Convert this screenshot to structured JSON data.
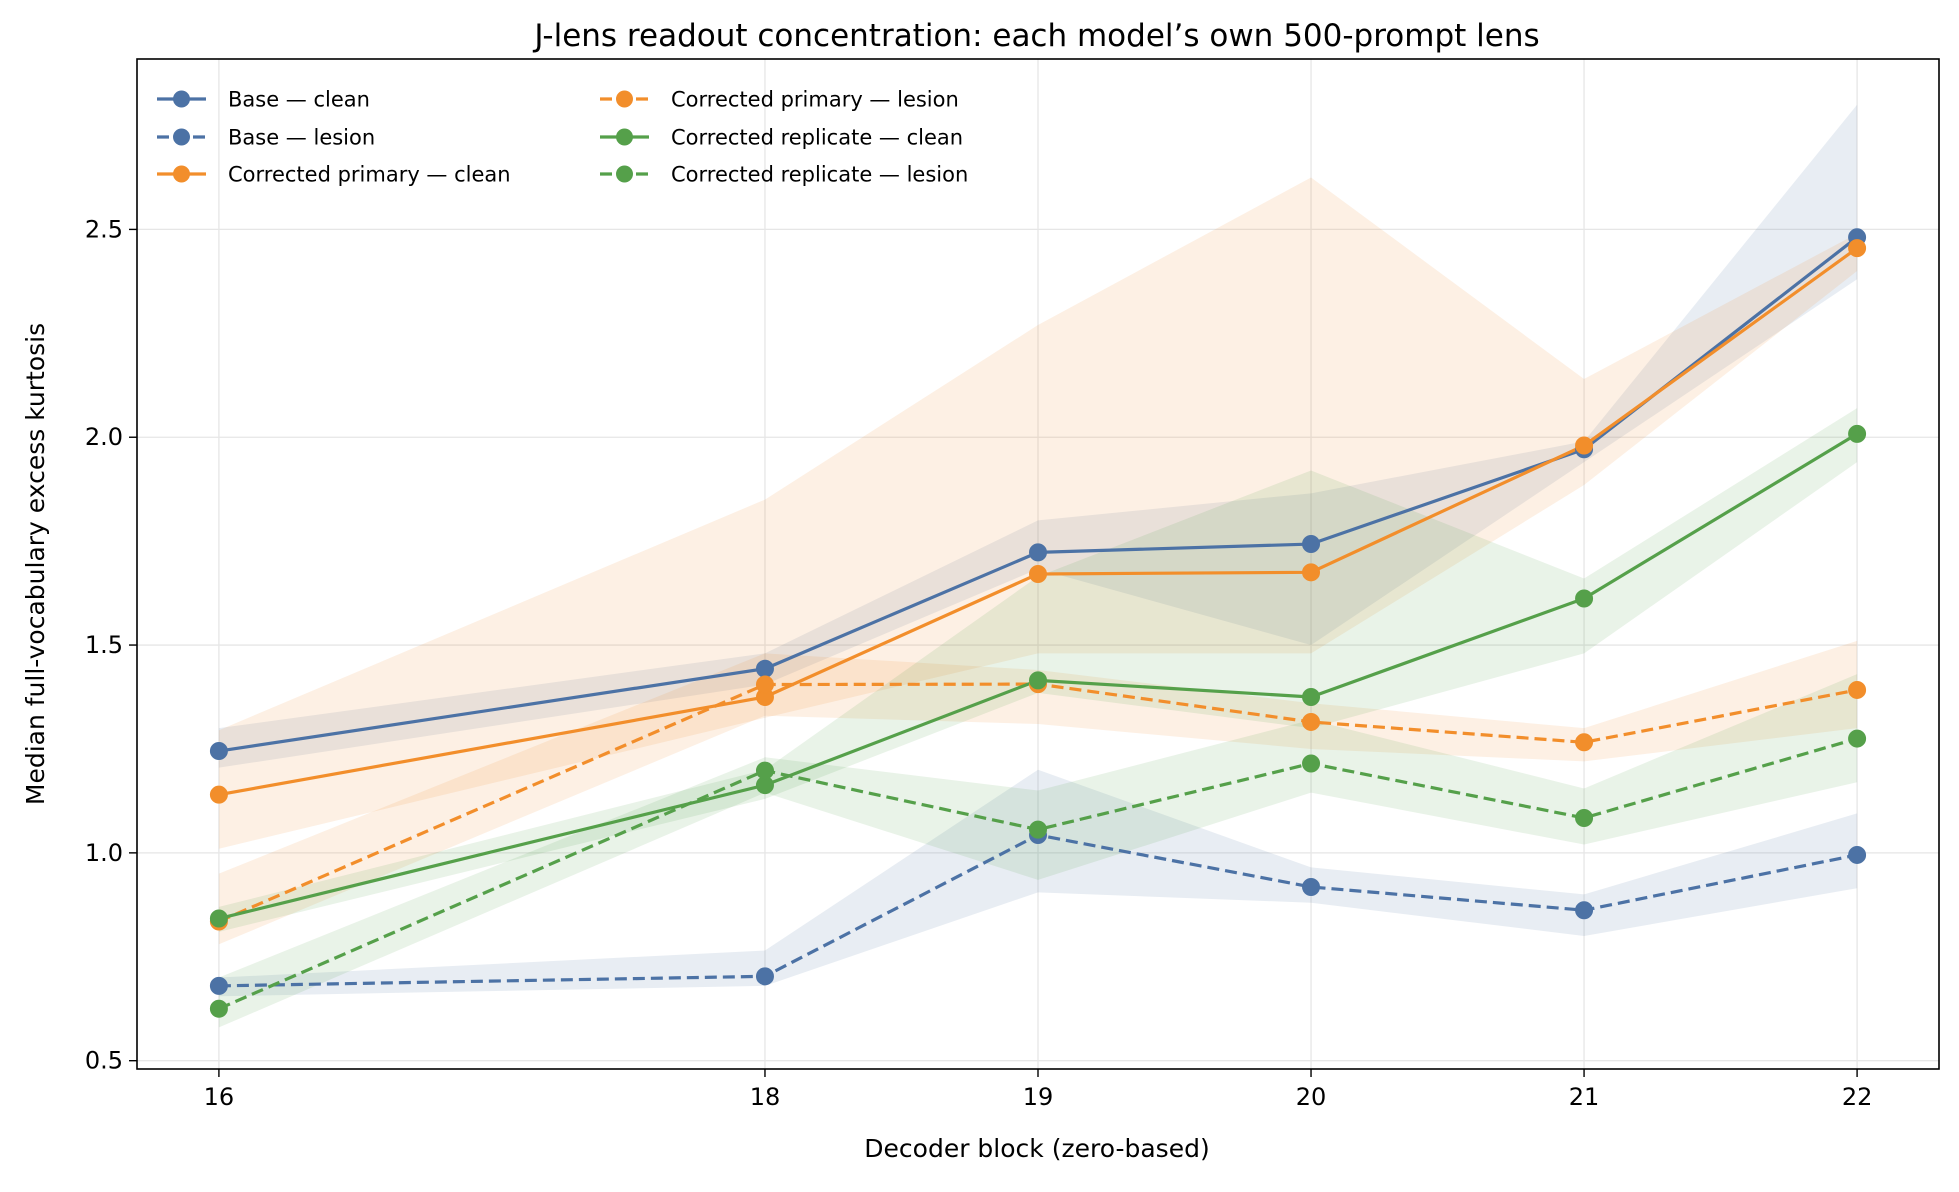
{
  "chart_data": {
    "type": "line",
    "title": "J-lens readout concentration: each model’s own 500-prompt lens",
    "xlabel": "Decoder block (zero-based)",
    "ylabel": "Median full-vocabulary excess kurtosis",
    "x": [
      16,
      18,
      19,
      20,
      21,
      22
    ],
    "xlim": [
      15.7,
      22.3
    ],
    "ylim": [
      0.48,
      2.91
    ],
    "xticks": [
      "16",
      "18",
      "19",
      "20",
      "21",
      "22"
    ],
    "yticks": [
      "0.5",
      "1.0",
      "1.5",
      "2.0",
      "2.5"
    ],
    "grid": true,
    "legend_placement": "top-left",
    "series": [
      {
        "name": "Base — clean",
        "color": "#4c72a5",
        "linestyle": "solid",
        "values": [
          1.245,
          1.443,
          1.723,
          1.743,
          1.971,
          2.481
        ],
        "band_low": [
          1.205,
          1.405,
          1.683,
          1.5,
          1.94,
          2.38
        ],
        "band_high": [
          1.3,
          1.48,
          1.8,
          1.865,
          1.99,
          2.8
        ]
      },
      {
        "name": "Base — lesion",
        "color": "#4c72a5",
        "linestyle": "dashed",
        "values": [
          0.68,
          0.703,
          1.043,
          0.918,
          0.862,
          0.995
        ],
        "band_low": [
          0.655,
          0.68,
          0.905,
          0.88,
          0.8,
          0.915
        ],
        "band_high": [
          0.7,
          0.765,
          1.2,
          0.965,
          0.9,
          1.095
        ]
      },
      {
        "name": "Corrected primary — clean",
        "color": "#f28e2b",
        "linestyle": "solid",
        "values": [
          1.14,
          1.375,
          1.671,
          1.675,
          1.98,
          2.455
        ],
        "band_low": [
          1.01,
          1.325,
          1.48,
          1.48,
          1.885,
          2.4
        ],
        "band_high": [
          1.295,
          1.85,
          2.27,
          2.625,
          2.14,
          2.49
        ]
      },
      {
        "name": "Corrected primary — lesion",
        "color": "#f28e2b",
        "linestyle": "dashed",
        "values": [
          0.835,
          1.405,
          1.406,
          1.315,
          1.266,
          1.392
        ],
        "band_low": [
          0.78,
          1.33,
          1.31,
          1.25,
          1.22,
          1.3
        ],
        "band_high": [
          0.95,
          1.48,
          1.44,
          1.36,
          1.3,
          1.51
        ]
      },
      {
        "name": "Corrected replicate — clean",
        "color": "#55a04a",
        "linestyle": "solid",
        "values": [
          0.842,
          1.163,
          1.415,
          1.375,
          1.612,
          2.008
        ],
        "band_low": [
          0.81,
          1.13,
          1.385,
          1.3,
          1.48,
          1.94
        ],
        "band_high": [
          0.87,
          1.2,
          1.665,
          1.92,
          1.66,
          2.07
        ]
      },
      {
        "name": "Corrected replicate — lesion",
        "color": "#55a04a",
        "linestyle": "dashed",
        "values": [
          0.625,
          1.198,
          1.056,
          1.215,
          1.084,
          1.275
        ],
        "band_low": [
          0.58,
          1.145,
          0.935,
          1.145,
          1.02,
          1.17
        ],
        "band_high": [
          0.7,
          1.23,
          1.15,
          1.32,
          1.155,
          1.43
        ]
      }
    ]
  }
}
